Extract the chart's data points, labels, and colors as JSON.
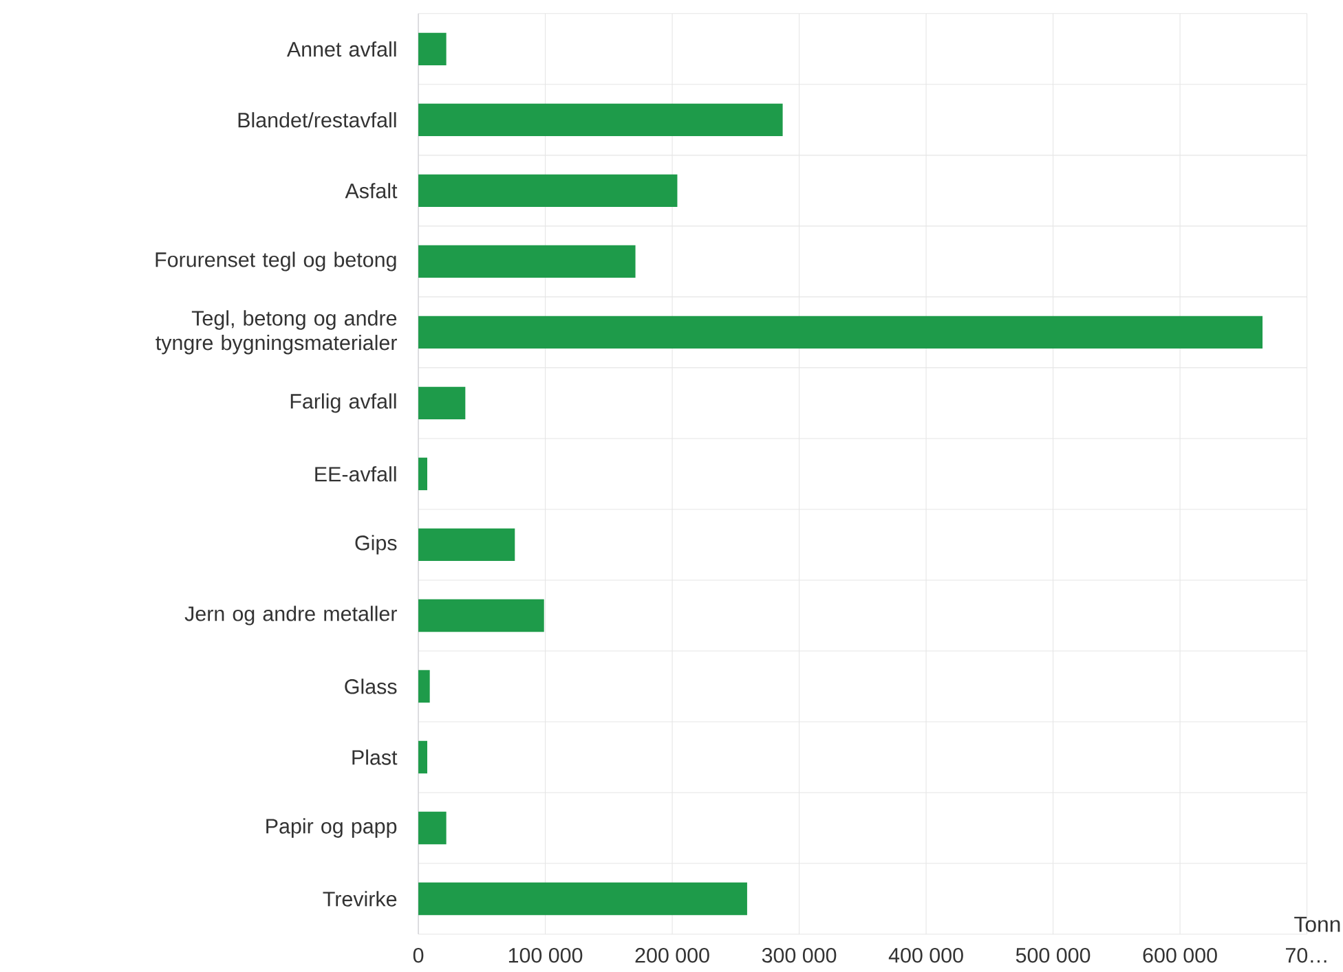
{
  "chart_data": {
    "type": "bar",
    "orientation": "horizontal",
    "xlabel": "Tonn",
    "categories": [
      "Annet avfall",
      "Blandet/restavfall",
      "Asfalt",
      "Forurenset tegl og betong",
      "Tegl, betong og andre tyngre bygningsmaterialer",
      "Farlig avfall",
      "EE-avfall",
      "Gips",
      "Jern og andre metaller",
      "Glass",
      "Plast",
      "Papir og papp",
      "Trevirke"
    ],
    "values": [
      22000,
      287000,
      204000,
      171000,
      665000,
      37000,
      7000,
      76000,
      99000,
      9000,
      7000,
      22000,
      259000
    ],
    "color": "#1e9b4a",
    "xlim": [
      0,
      700000
    ],
    "xticks": [
      0,
      {
        "value": 100000,
        "label": "100 000"
      },
      {
        "value": 200000,
        "label": "200 000"
      },
      {
        "value": 300000,
        "label": "300 000"
      },
      {
        "value": 400000,
        "label": "400 000"
      },
      {
        "value": 500000,
        "label": "500 000"
      },
      {
        "value": 600000,
        "label": "600 000"
      },
      {
        "value": 700000,
        "label": "70…"
      }
    ],
    "grid": true
  }
}
